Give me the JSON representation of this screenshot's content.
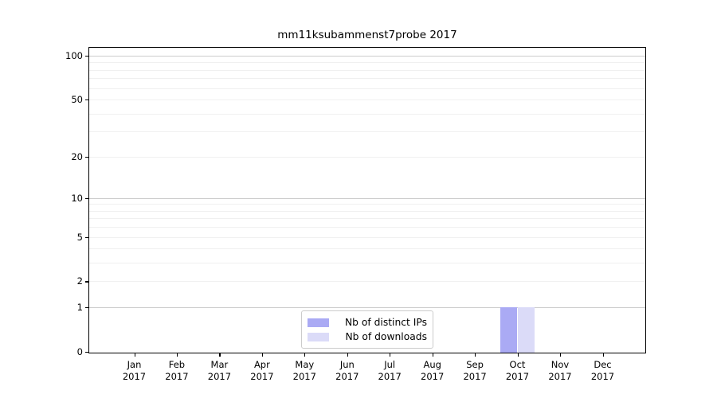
{
  "chart_data": {
    "type": "bar",
    "title": "mm11ksubammenst7probe 2017",
    "categories": [
      "Jan 2017",
      "Feb 2017",
      "Mar 2017",
      "Apr 2017",
      "May 2017",
      "Jun 2017",
      "Jul 2017",
      "Aug 2017",
      "Sep 2017",
      "Oct 2017",
      "Nov 2017",
      "Dec 2017"
    ],
    "series": [
      {
        "name": "Nb of distinct IPs",
        "color": "#aaaaf4",
        "values": [
          0,
          0,
          0,
          0,
          0,
          0,
          0,
          0,
          0,
          1,
          0,
          0
        ]
      },
      {
        "name": "Nb of downloads",
        "color": "#dbdbf8",
        "values": [
          0,
          0,
          0,
          0,
          0,
          0,
          0,
          0,
          0,
          1,
          0,
          0
        ]
      }
    ],
    "xlabel": "",
    "ylabel": "",
    "yscale": "log1p",
    "ylim": [
      0,
      115
    ],
    "ytick_labels": [
      0,
      1,
      2,
      5,
      10,
      20,
      50,
      100
    ],
    "major_gridlines": [
      1,
      10,
      100
    ],
    "minor_gridlines": [
      2,
      3,
      4,
      5,
      6,
      7,
      8,
      9,
      20,
      30,
      40,
      50,
      60,
      70,
      80,
      90
    ],
    "grid": "horizontal",
    "legend_position": "lower center inside"
  }
}
